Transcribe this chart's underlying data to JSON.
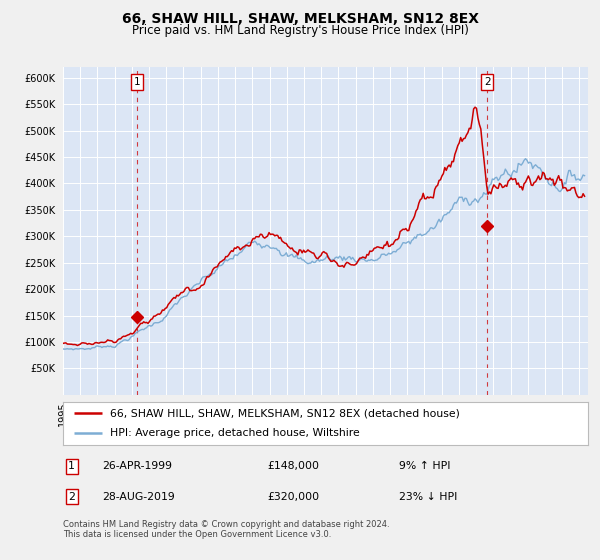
{
  "title": "66, SHAW HILL, SHAW, MELKSHAM, SN12 8EX",
  "subtitle": "Price paid vs. HM Land Registry's House Price Index (HPI)",
  "title_fontsize": 10,
  "subtitle_fontsize": 8.5,
  "background_color": "#f0f0f0",
  "plot_bg_color": "#dce6f5",
  "red_line_color": "#cc0000",
  "blue_line_color": "#7dadd4",
  "marker_color": "#cc0000",
  "dashed_line_color": "#cc0000",
  "grid_color": "#ffffff",
  "ylim": [
    0,
    620000
  ],
  "yticks": [
    0,
    50000,
    100000,
    150000,
    200000,
    250000,
    300000,
    350000,
    400000,
    450000,
    500000,
    550000,
    600000
  ],
  "ytick_labels": [
    "",
    "£50K",
    "£100K",
    "£150K",
    "£200K",
    "£250K",
    "£300K",
    "£350K",
    "£400K",
    "£450K",
    "£500K",
    "£550K",
    "£600K"
  ],
  "purchase1_date_num": 1999.32,
  "purchase1_price": 148000,
  "purchase2_date_num": 2019.65,
  "purchase2_price": 320000,
  "legend_line1": "66, SHAW HILL, SHAW, MELKSHAM, SN12 8EX (detached house)",
  "legend_line2": "HPI: Average price, detached house, Wiltshire",
  "annot1_date": "26-APR-1999",
  "annot1_price": "£148,000",
  "annot1_hpi": "9% ↑ HPI",
  "annot2_date": "28-AUG-2019",
  "annot2_price": "£320,000",
  "annot2_hpi": "23% ↓ HPI",
  "footer": "Contains HM Land Registry data © Crown copyright and database right 2024.\nThis data is licensed under the Open Government Licence v3.0.",
  "xstart": 1995.0,
  "xend": 2025.5
}
